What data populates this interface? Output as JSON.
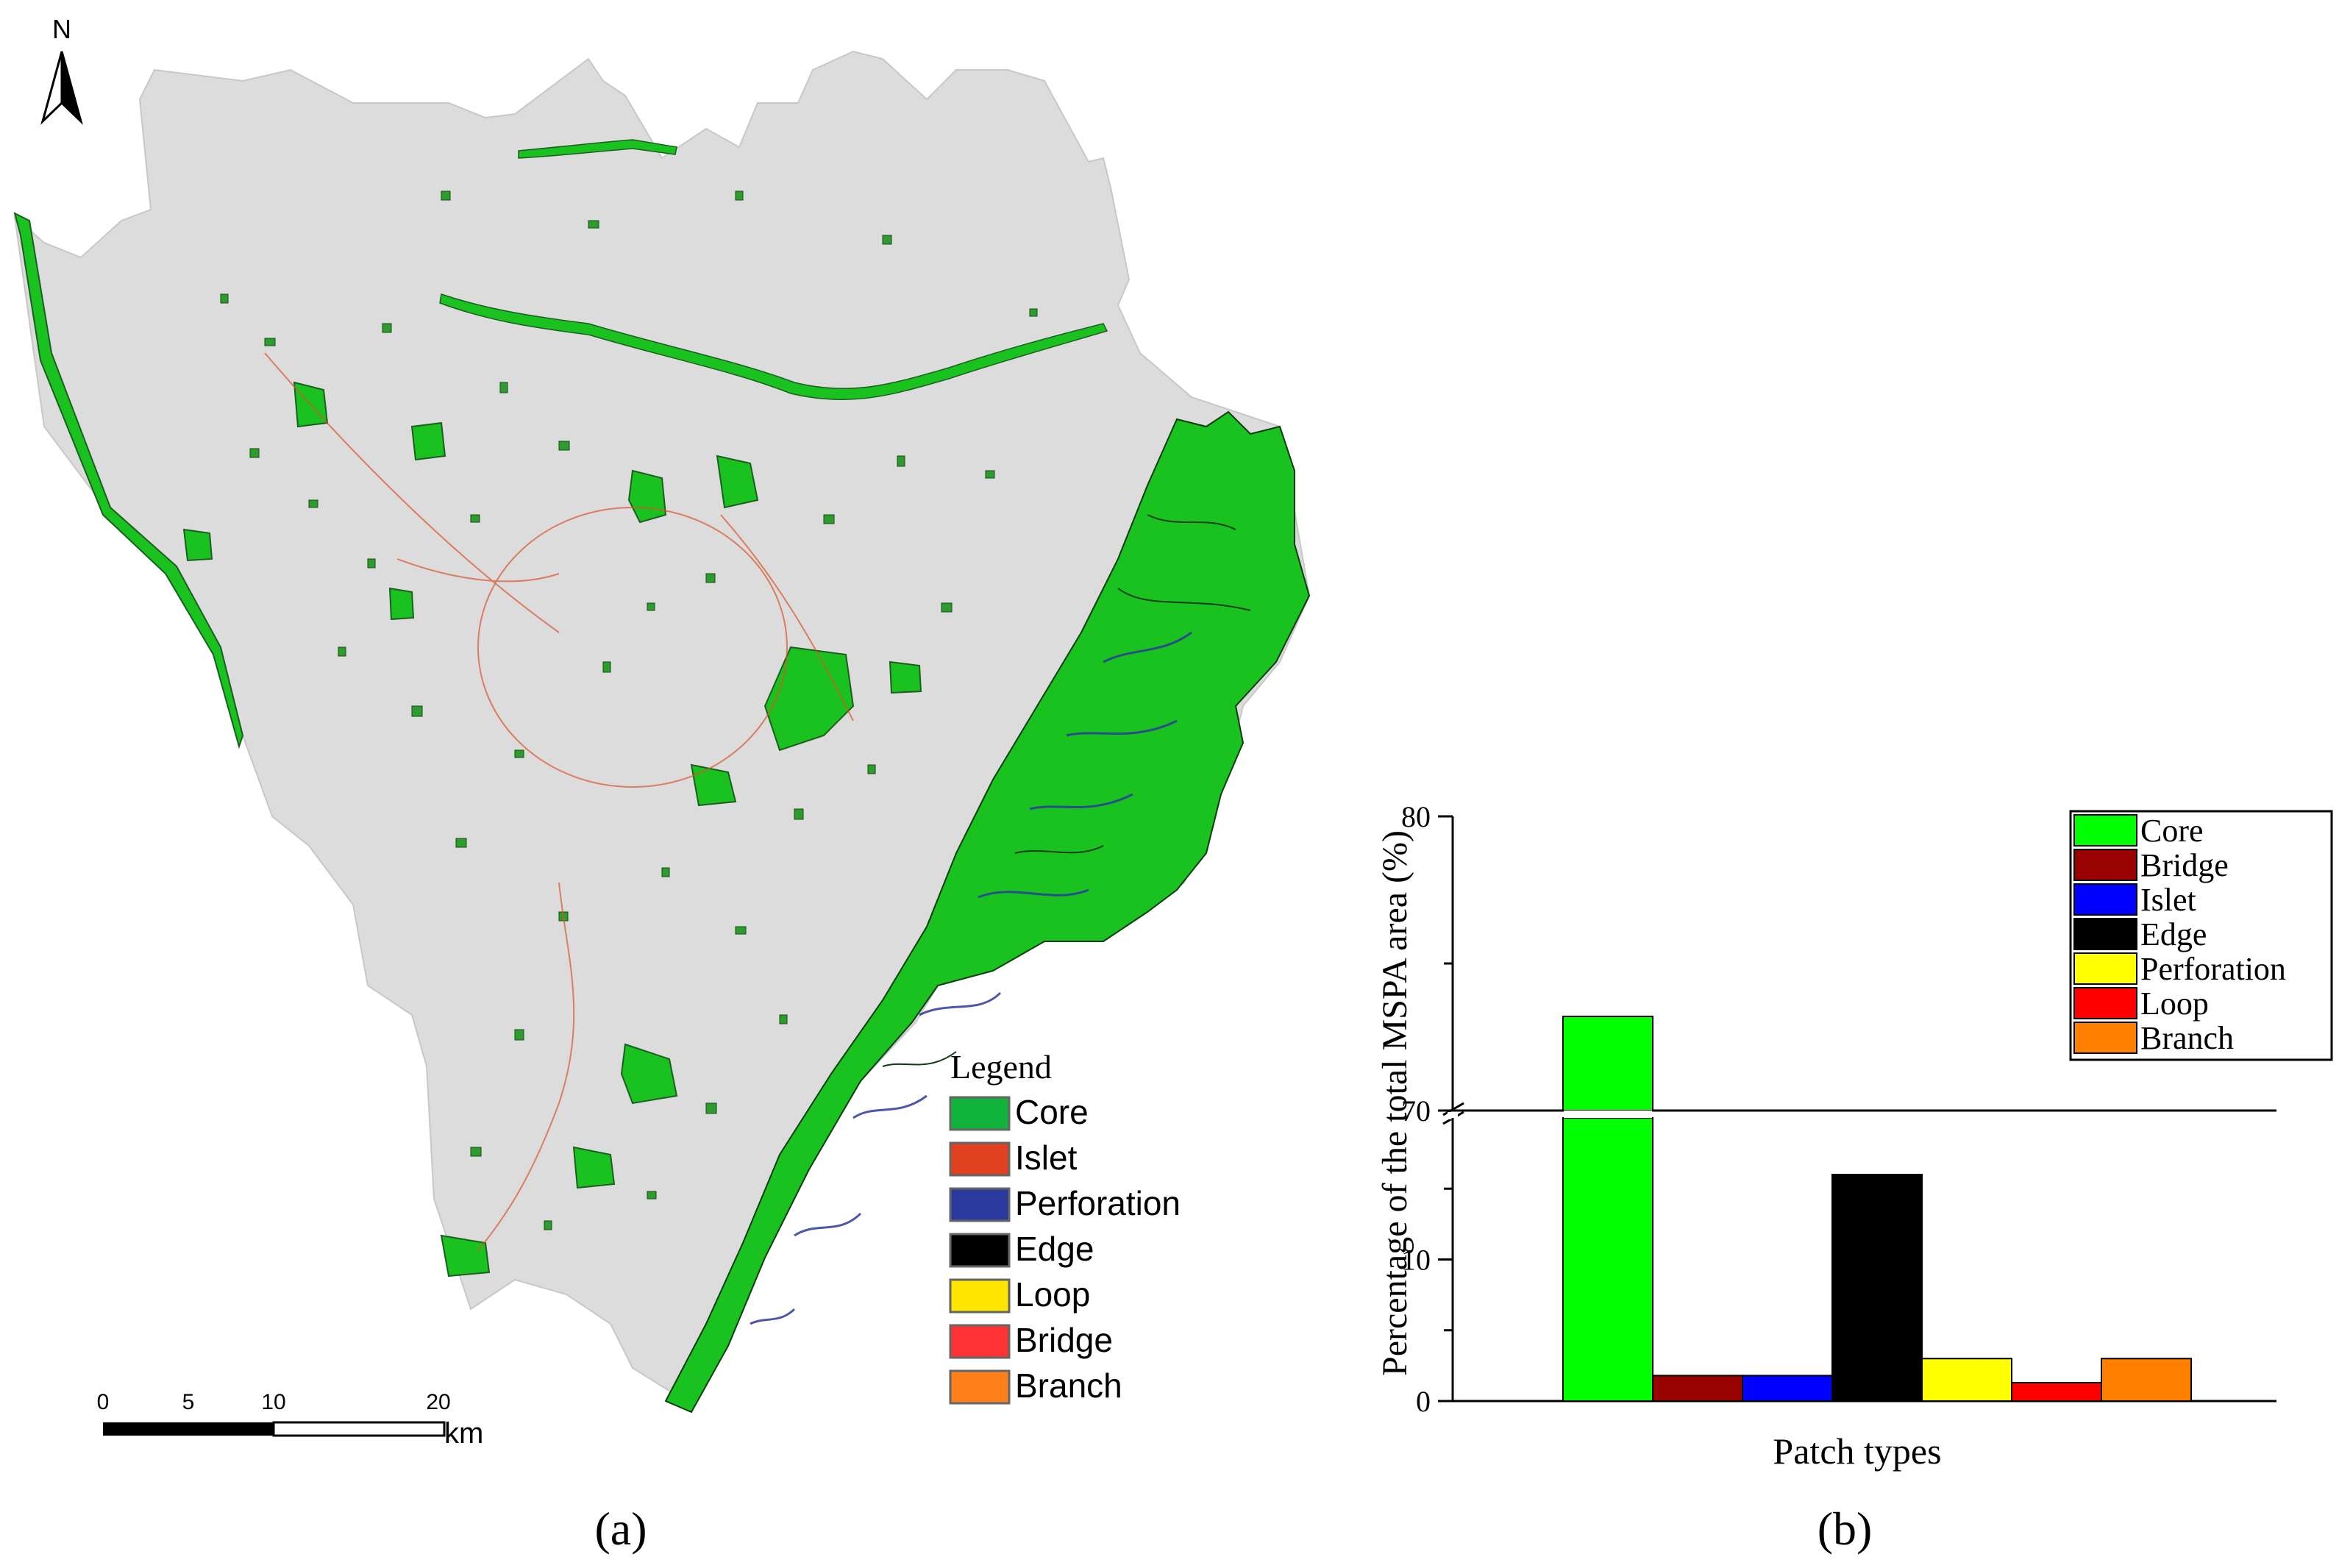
{
  "panel_a": {
    "caption": "(a)",
    "north_label": "N",
    "legend": {
      "title": "Legend",
      "items": [
        {
          "label": "Core",
          "color": "#12b33a"
        },
        {
          "label": "Islet",
          "color": "#e04020"
        },
        {
          "label": "Perforation",
          "color": "#2a3a9c"
        },
        {
          "label": "Edge",
          "color": "#000000"
        },
        {
          "label": "Loop",
          "color": "#ffe600"
        },
        {
          "label": "Bridge",
          "color": "#ff3333"
        },
        {
          "label": "Branch",
          "color": "#ff7f1a"
        }
      ]
    },
    "scale_bar": {
      "ticks": [
        "0",
        "5",
        "10",
        "20"
      ],
      "unit": "km"
    },
    "colors": {
      "background": "#dcdcdc",
      "core": "#19c21f",
      "outline": "#1b5e20"
    }
  },
  "panel_b": {
    "caption": "(b)",
    "chart_data": {
      "type": "bar",
      "ylabel": "Percentage of the total MSPA area (%)",
      "xlabel": "Patch types",
      "axis_break": {
        "lower_range": [
          0,
          20
        ],
        "upper_range": [
          70,
          80
        ]
      },
      "y_ticks": [
        "0",
        "10",
        "70",
        "80"
      ],
      "categories": [
        "Core",
        "Bridge",
        "Islet",
        "Edge",
        "Perforation",
        "Loop",
        "Branch"
      ],
      "values": [
        73.2,
        1.8,
        1.8,
        16.0,
        3.0,
        1.3,
        3.0
      ],
      "colors": [
        "#00ff00",
        "#990000",
        "#0000ff",
        "#000000",
        "#ffff00",
        "#ff0000",
        "#ff7f00"
      ],
      "legend_position": "top-right"
    }
  }
}
